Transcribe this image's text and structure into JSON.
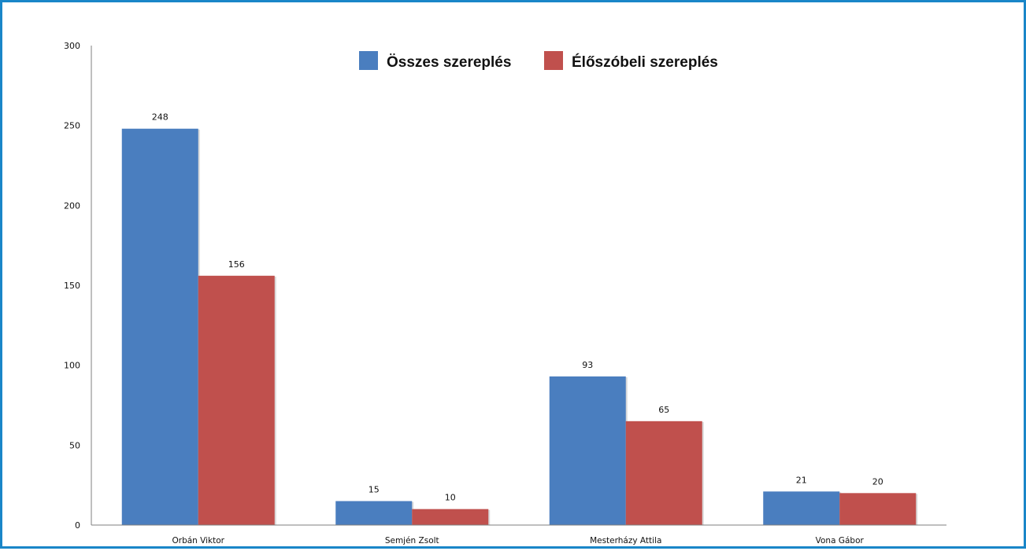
{
  "chart_data": {
    "type": "bar",
    "categories": [
      "Orbán Viktor",
      "Semjén Zsolt",
      "Mesterházy Attila",
      "Vona Gábor"
    ],
    "series": [
      {
        "name": "Összes szereplés",
        "values": [
          248,
          15,
          93,
          21
        ],
        "color": "#4a7ebf"
      },
      {
        "name": "Élőszóbeli szereplés",
        "values": [
          156,
          10,
          65,
          20
        ],
        "color": "#c0504d"
      }
    ],
    "yticks": [
      0,
      50,
      100,
      150,
      200,
      250,
      300
    ],
    "ylim": [
      0,
      300
    ],
    "grid": false,
    "legend": "top-center",
    "data_labels": true
  },
  "colors": {
    "frame_border": "#1a86c8",
    "axis": "#7f7f7f"
  }
}
